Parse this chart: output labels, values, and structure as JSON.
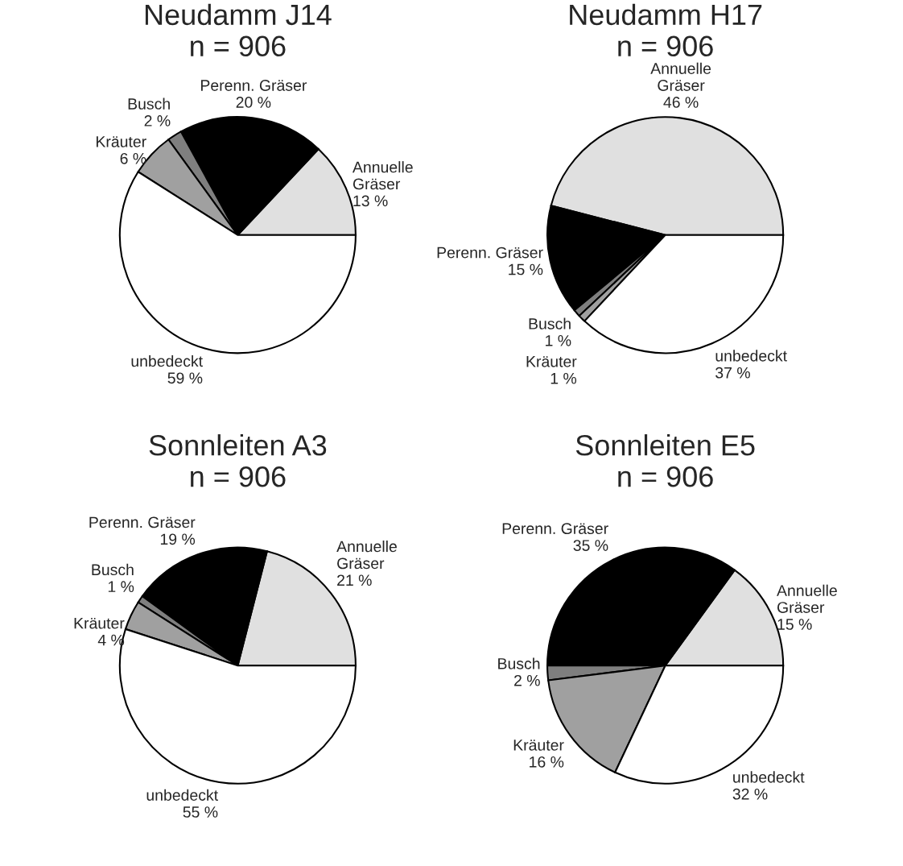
{
  "chart_data": [
    {
      "type": "pie",
      "title": "Neudamm J14",
      "subtitle": "n = 906",
      "categories": [
        "Annuelle\nGräser",
        "Perenn. Gräser",
        "Busch",
        "Kräuter",
        "unbedeckt"
      ],
      "values": [
        13,
        20,
        2,
        6,
        59
      ],
      "value_labels": [
        "13 %",
        "20 %",
        "2 %",
        "6 %",
        "59 %"
      ],
      "colors": [
        "#e0e0e0",
        "#000000",
        "#7f7f7f",
        "#a0a0a0",
        "#ffffff"
      ]
    },
    {
      "type": "pie",
      "title": "Neudamm H17",
      "subtitle": "n = 906",
      "categories": [
        "Annuelle\nGräser",
        "Perenn. Gräser",
        "Busch",
        "Kräuter",
        "unbedeckt"
      ],
      "values": [
        46,
        15,
        1,
        1,
        37
      ],
      "value_labels": [
        "46 %",
        "15 %",
        "1 %",
        "1 %",
        "37 %"
      ],
      "colors": [
        "#e0e0e0",
        "#000000",
        "#7f7f7f",
        "#a0a0a0",
        "#ffffff"
      ]
    },
    {
      "type": "pie",
      "title": "Sonnleiten A3",
      "subtitle": "n = 906",
      "categories": [
        "Annuelle\nGräser",
        "Perenn. Gräser",
        "Busch",
        "Kräuter",
        "unbedeckt"
      ],
      "values": [
        21,
        19,
        1,
        4,
        55
      ],
      "value_labels": [
        "21 %",
        "19 %",
        "1 %",
        "4 %",
        "55 %"
      ],
      "colors": [
        "#e0e0e0",
        "#000000",
        "#7f7f7f",
        "#a0a0a0",
        "#ffffff"
      ]
    },
    {
      "type": "pie",
      "title": "Sonnleiten E5",
      "subtitle": "n = 906",
      "categories": [
        "Annuelle\nGräser",
        "Perenn. Gräser",
        "Busch",
        "Kräuter",
        "unbedeckt"
      ],
      "values": [
        15,
        35,
        2,
        16,
        32
      ],
      "value_labels": [
        "15 %",
        "35 %",
        "2 %",
        "16 %",
        "32 %"
      ],
      "colors": [
        "#e0e0e0",
        "#000000",
        "#7f7f7f",
        "#a0a0a0",
        "#ffffff"
      ]
    }
  ]
}
